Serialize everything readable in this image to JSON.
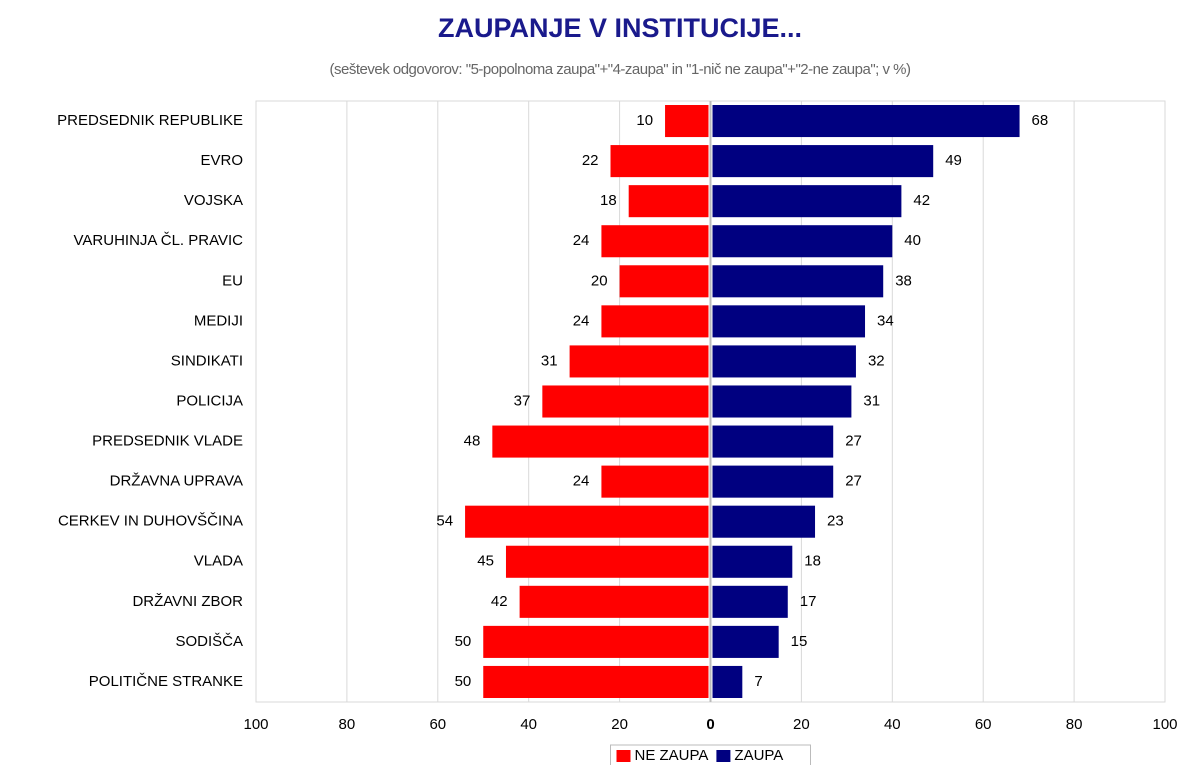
{
  "chart_data": {
    "type": "diverging-bar",
    "title": "ZAUPANJE V INSTITUCIJE...",
    "subtitle": "(seštevek odgovorov: \"5-popolnoma zaupa\"+\"4-zaupa\" in \"1-nič ne zaupa\"+\"2-ne zaupa\"; v %)",
    "categories": [
      "PREDSEDNIK REPUBLIKE",
      "EVRO",
      "VOJSKA",
      "VARUHINJA ČL. PRAVIC",
      "EU",
      "MEDIJI",
      "SINDIKATI",
      "POLICIJA",
      "PREDSEDNIK VLADE",
      "DRŽAVNA UPRAVA",
      "CERKEV IN DUHOVŠČINA",
      "VLADA",
      "DRŽAVNI ZBOR",
      "SODIŠČA",
      "POLITIČNE STRANKE"
    ],
    "series": [
      {
        "name": "NE ZAUPA",
        "color": "#ff0000",
        "values": [
          -10,
          -22,
          -18,
          -24,
          -20,
          -24,
          -31,
          -37,
          -48,
          -24,
          -54,
          -45,
          -42,
          -50,
          -50
        ],
        "value_labels": [
          "10",
          "22",
          "18",
          "24",
          "20",
          "24",
          "31",
          "37",
          "48",
          "24",
          "54",
          "45",
          "42",
          "50",
          "50"
        ]
      },
      {
        "name": "ZAUPA",
        "color": "#000080",
        "values": [
          68,
          49,
          42,
          40,
          38,
          34,
          32,
          31,
          27,
          27,
          23,
          18,
          17,
          15,
          7
        ]
      }
    ],
    "xlim": [
      -100,
      100
    ],
    "xticks": [
      {
        "value": -100,
        "label": "100"
      },
      {
        "value": -80,
        "label": "80"
      },
      {
        "value": -60,
        "label": "60"
      },
      {
        "value": -40,
        "label": "40"
      },
      {
        "value": -20,
        "label": "20"
      },
      0,
      20,
      40,
      60,
      80,
      100
    ],
    "grid": true,
    "legend": "bottom"
  }
}
